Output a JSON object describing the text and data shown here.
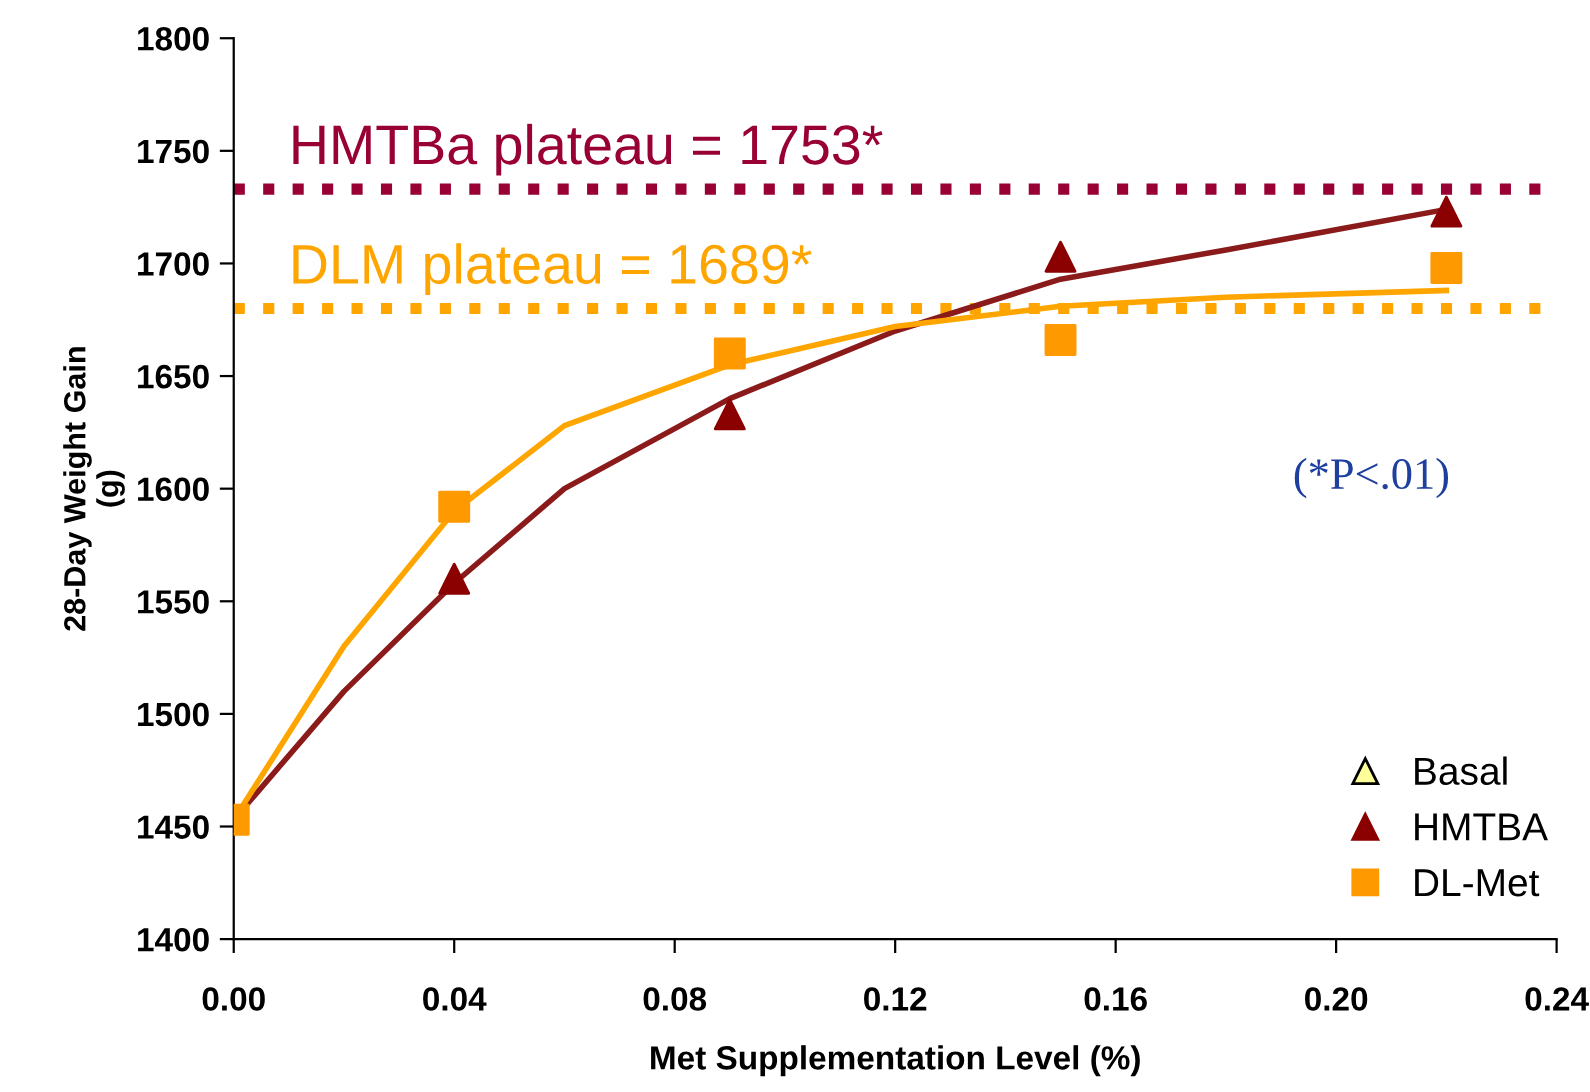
{
  "chart_data": {
    "type": "scatter",
    "xlabel": "Met Supplementation Level (%)",
    "ylabel": "28-Day Weight Gain\n(g)",
    "xlim": [
      0,
      0.24
    ],
    "xticks": [
      {
        "value": 0,
        "label": "0.00"
      },
      {
        "value": 0.04,
        "label": "0.04"
      },
      {
        "value": 0.08,
        "label": "0.08"
      },
      {
        "value": 0.12,
        "label": "0.12"
      },
      {
        "value": 0.16,
        "label": "0.16"
      },
      {
        "value": 0.2,
        "label": "0.20"
      },
      {
        "value": 0.24,
        "label": "0.24"
      }
    ],
    "ylim": [
      1400,
      1800
    ],
    "yticks": [
      1400,
      1450,
      1500,
      1550,
      1600,
      1650,
      1700,
      1750,
      1800
    ],
    "grid": false,
    "legend": "bottom right",
    "series": [
      {
        "type": "line",
        "color": "#8b1a1a",
        "marker": "none",
        "x": [
          0,
          0.02,
          0.04,
          0.06,
          0.09,
          0.12,
          0.15,
          0.18,
          0.22
        ],
        "values": [
          1453,
          1510,
          1558,
          1600,
          1640,
          1670,
          1693,
          1706,
          1724
        ]
      },
      {
        "type": "line",
        "color": "#ffa500",
        "marker": "none",
        "x": [
          0,
          0.02,
          0.04,
          0.06,
          0.09,
          0.12,
          0.15,
          0.18,
          0.22
        ],
        "values": [
          1453,
          1530,
          1590,
          1628,
          1655,
          1672,
          1681,
          1685,
          1688
        ]
      },
      {
        "name": "Basal",
        "color": "#ffff99",
        "marker": "triangle"
      },
      {
        "name": "HMTBA",
        "color": "#8b0000",
        "marker": "triangle",
        "x": [
          0.04,
          0.09,
          0.15,
          0.22
        ],
        "values": [
          1560,
          1633,
          1703,
          1723
        ]
      },
      {
        "name": "DL-Met",
        "color": "#ff9900",
        "marker": "square",
        "x": [
          0,
          0.04,
          0.09,
          0.15,
          0.22
        ],
        "values": [
          1453,
          1592,
          1660,
          1666,
          1698
        ]
      }
    ],
    "ref_lines": [
      {
        "axis": "y",
        "value": 1733,
        "color": "#990033",
        "line_style": "dotted"
      },
      {
        "axis": "y",
        "value": 1680,
        "color": "#ffa500",
        "line_style": "dotted"
      }
    ],
    "annotations": [
      "HMTBa plateau = 1753*",
      "DLM plateau = 1689*",
      "(*P<.01)"
    ]
  }
}
